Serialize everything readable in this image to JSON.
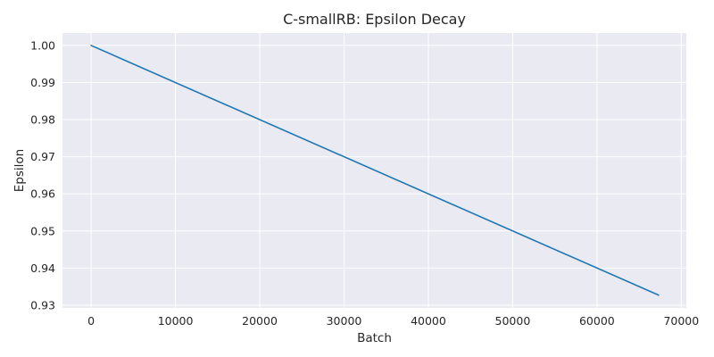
{
  "chart_data": {
    "type": "line",
    "title": "C-smallRB: Epsilon Decay",
    "xlabel": "Batch",
    "ylabel": "Epsilon",
    "xlim": [
      -3400,
      70600
    ],
    "ylim": [
      0.92925,
      1.00335
    ],
    "xticks": [
      0,
      10000,
      20000,
      30000,
      40000,
      50000,
      60000,
      70000
    ],
    "yticks": [
      0.93,
      0.94,
      0.95,
      0.96,
      0.97,
      0.98,
      0.99,
      1.0
    ],
    "xtick_labels": [
      "0",
      "10000",
      "20000",
      "30000",
      "40000",
      "50000",
      "60000",
      "70000"
    ],
    "ytick_labels": [
      "0.93",
      "0.94",
      "0.95",
      "0.96",
      "0.97",
      "0.98",
      "0.99",
      "1.00"
    ],
    "grid": true,
    "background": "#eaeaf2",
    "series": [
      {
        "color": "#1f77b4",
        "x": [
          0,
          67300
        ],
        "y": [
          1.0,
          0.9327
        ]
      }
    ]
  }
}
